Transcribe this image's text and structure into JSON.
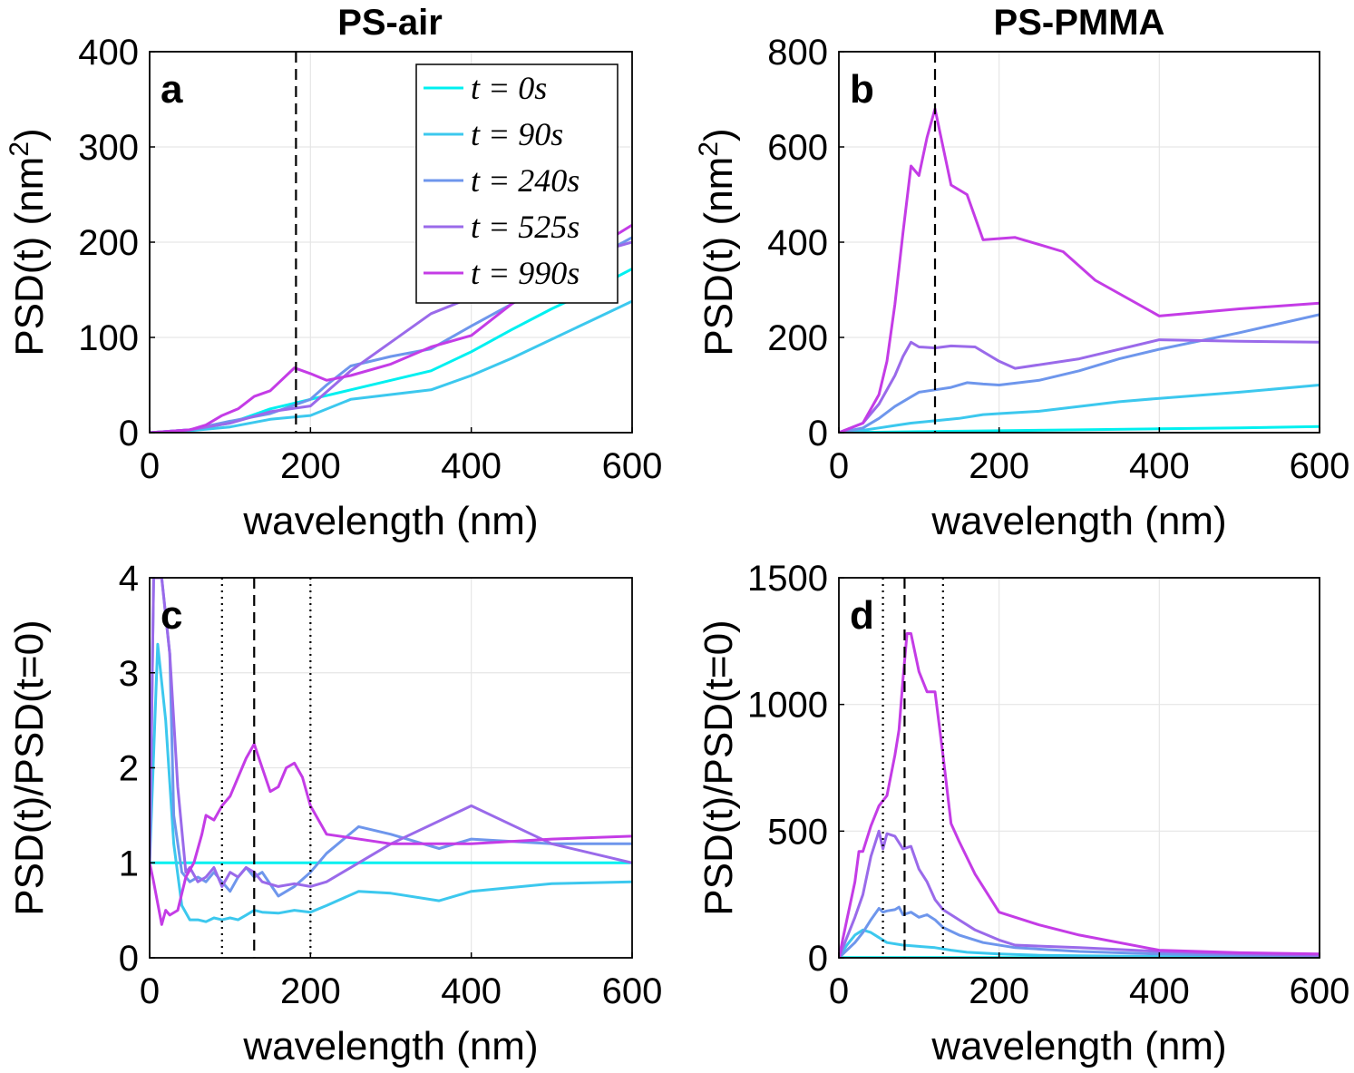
{
  "figure": {
    "column_titles": [
      "PS-air",
      "PS-PMMA"
    ]
  },
  "series_meta": [
    {
      "name": "t = 0s",
      "color": "#00F0F0"
    },
    {
      "name": "t = 90s",
      "color": "#3CC8EE"
    },
    {
      "name": "t = 240s",
      "color": "#6E96EC"
    },
    {
      "name": "t = 525s",
      "color": "#9A6AEA"
    },
    {
      "name": "t = 990s",
      "color": "#C43CE6"
    }
  ],
  "chart_data": [
    {
      "panel": "a",
      "type": "line",
      "xlabel": "wavelength (nm)",
      "ylabel": "PSD(t) (nm",
      "ylabel_sup": "2",
      "ylabel_tail": ")",
      "xlim": [
        0,
        600
      ],
      "ylim": [
        0,
        400
      ],
      "xticks": [
        0,
        200,
        400,
        600
      ],
      "yticks": [
        0,
        100,
        200,
        300,
        400
      ],
      "grid": true,
      "legend": "top-right",
      "vlines": [
        {
          "x": 182,
          "style": "dashed"
        }
      ],
      "series": [
        {
          "name": "t = 0s",
          "x": [
            0,
            50,
            100,
            150,
            200,
            250,
            300,
            350,
            400,
            450,
            500,
            550,
            600
          ],
          "y": [
            0,
            3,
            10,
            25,
            35,
            45,
            55,
            65,
            85,
            108,
            130,
            150,
            172
          ]
        },
        {
          "name": "t = 90s",
          "x": [
            0,
            50,
            100,
            150,
            200,
            250,
            300,
            350,
            400,
            450,
            500,
            550,
            600
          ],
          "y": [
            0,
            2,
            6,
            14,
            18,
            35,
            40,
            45,
            60,
            78,
            98,
            118,
            138
          ]
        },
        {
          "name": "t = 240s",
          "x": [
            0,
            50,
            100,
            150,
            200,
            220,
            250,
            300,
            350,
            400,
            450,
            500,
            550,
            600
          ],
          "y": [
            0,
            3,
            12,
            20,
            35,
            50,
            70,
            80,
            88,
            112,
            135,
            160,
            182,
            205
          ]
        },
        {
          "name": "t = 525s",
          "x": [
            0,
            50,
            100,
            150,
            200,
            250,
            300,
            350,
            400,
            450,
            500,
            550,
            600
          ],
          "y": [
            0,
            3,
            10,
            22,
            28,
            65,
            95,
            125,
            142,
            160,
            176,
            188,
            200
          ]
        },
        {
          "name": "t = 990s",
          "x": [
            0,
            50,
            70,
            90,
            110,
            130,
            150,
            180,
            200,
            220,
            250,
            300,
            350,
            400,
            450,
            500,
            550,
            600
          ],
          "y": [
            0,
            3,
            8,
            18,
            25,
            38,
            44,
            68,
            62,
            55,
            60,
            72,
            90,
            102,
            135,
            165,
            192,
            218
          ]
        }
      ]
    },
    {
      "panel": "b",
      "type": "line",
      "xlabel": "wavelength (nm)",
      "ylabel": "PSD(t) (nm",
      "ylabel_sup": "2",
      "ylabel_tail": ")",
      "xlim": [
        0,
        600
      ],
      "ylim": [
        0,
        800
      ],
      "xticks": [
        0,
        200,
        400,
        600
      ],
      "yticks": [
        0,
        200,
        400,
        600,
        800
      ],
      "grid": true,
      "legend": "none",
      "vlines": [
        {
          "x": 120,
          "style": "dashed"
        }
      ],
      "series": [
        {
          "name": "t = 0s",
          "x": [
            0,
            100,
            200,
            300,
            400,
            500,
            600
          ],
          "y": [
            0,
            2,
            4,
            6,
            8,
            10,
            13
          ]
        },
        {
          "name": "t = 90s",
          "x": [
            0,
            30,
            50,
            70,
            90,
            120,
            150,
            180,
            200,
            250,
            300,
            350,
            400,
            500,
            600
          ],
          "y": [
            0,
            5,
            10,
            15,
            20,
            25,
            30,
            38,
            40,
            45,
            55,
            65,
            72,
            85,
            100
          ]
        },
        {
          "name": "t = 240s",
          "x": [
            0,
            30,
            50,
            70,
            90,
            100,
            120,
            140,
            160,
            180,
            200,
            250,
            300,
            350,
            400,
            500,
            600
          ],
          "y": [
            0,
            10,
            30,
            55,
            75,
            85,
            90,
            95,
            105,
            102,
            100,
            110,
            130,
            155,
            175,
            210,
            248
          ]
        },
        {
          "name": "t = 525s",
          "x": [
            0,
            30,
            50,
            70,
            80,
            90,
            100,
            120,
            140,
            170,
            200,
            220,
            300,
            400,
            500,
            600
          ],
          "y": [
            0,
            20,
            60,
            120,
            160,
            190,
            180,
            178,
            182,
            180,
            150,
            135,
            155,
            195,
            192,
            190
          ]
        },
        {
          "name": "t = 990s",
          "x": [
            0,
            30,
            50,
            60,
            70,
            80,
            90,
            100,
            110,
            120,
            140,
            160,
            180,
            220,
            250,
            280,
            320,
            400,
            500,
            600
          ],
          "y": [
            0,
            20,
            80,
            150,
            270,
            420,
            560,
            540,
            620,
            680,
            520,
            500,
            405,
            410,
            395,
            380,
            320,
            245,
            260,
            272
          ]
        }
      ]
    },
    {
      "panel": "c",
      "type": "line",
      "xlabel": "wavelength (nm)",
      "ylabel": "PSD(t)/PSD(t=0)",
      "xlim": [
        0,
        600
      ],
      "ylim": [
        0,
        4
      ],
      "xticks": [
        0,
        200,
        400,
        600
      ],
      "yticks": [
        0,
        1,
        2,
        3,
        4
      ],
      "grid": true,
      "legend": "none",
      "vlines": [
        {
          "x": 90,
          "style": "dotted"
        },
        {
          "x": 130,
          "style": "dashed"
        },
        {
          "x": 200,
          "style": "dotted"
        }
      ],
      "series": [
        {
          "name": "t = 0s",
          "x": [
            0,
            600
          ],
          "y": [
            1,
            1
          ]
        },
        {
          "name": "t = 90s",
          "x": [
            0,
            10,
            20,
            30,
            40,
            50,
            60,
            70,
            80,
            90,
            100,
            110,
            120,
            130,
            140,
            160,
            180,
            200,
            220,
            260,
            300,
            360,
            400,
            500,
            600
          ],
          "y": [
            1.0,
            3.3,
            2.5,
            1.2,
            0.55,
            0.4,
            0.4,
            0.38,
            0.42,
            0.4,
            0.42,
            0.4,
            0.45,
            0.5,
            0.48,
            0.47,
            0.5,
            0.48,
            0.55,
            0.7,
            0.68,
            0.6,
            0.7,
            0.78,
            0.8
          ]
        },
        {
          "name": "t = 240s",
          "x": [
            0,
            5,
            15,
            25,
            30,
            40,
            50,
            60,
            70,
            80,
            90,
            100,
            110,
            120,
            130,
            140,
            160,
            180,
            200,
            220,
            260,
            300,
            360,
            400,
            500,
            600
          ],
          "y": [
            1.0,
            4.0,
            4.0,
            3.2,
            1.5,
            0.9,
            0.8,
            0.85,
            0.8,
            0.9,
            0.8,
            0.7,
            0.85,
            0.95,
            0.85,
            0.9,
            0.65,
            0.75,
            0.9,
            1.1,
            1.38,
            1.3,
            1.15,
            1.25,
            1.2,
            1.2
          ]
        },
        {
          "name": "t = 525s",
          "x": [
            0,
            5,
            15,
            25,
            35,
            45,
            50,
            60,
            70,
            80,
            90,
            100,
            110,
            120,
            130,
            140,
            160,
            180,
            200,
            220,
            300,
            400,
            500,
            600
          ],
          "y": [
            1.0,
            4.0,
            4.0,
            3.2,
            1.8,
            0.9,
            0.95,
            0.8,
            0.85,
            0.95,
            0.75,
            0.9,
            0.85,
            0.95,
            0.9,
            0.8,
            0.75,
            0.78,
            0.75,
            0.8,
            1.2,
            1.6,
            1.2,
            1.0
          ]
        },
        {
          "name": "t = 990s",
          "x": [
            0,
            5,
            15,
            20,
            25,
            35,
            45,
            55,
            65,
            70,
            80,
            90,
            100,
            110,
            120,
            130,
            140,
            150,
            160,
            170,
            180,
            190,
            200,
            220,
            300,
            400,
            500,
            600
          ],
          "y": [
            1.0,
            0.8,
            0.35,
            0.5,
            0.45,
            0.5,
            0.85,
            1.0,
            1.3,
            1.5,
            1.45,
            1.6,
            1.7,
            1.9,
            2.1,
            2.25,
            2.0,
            1.75,
            1.8,
            2.0,
            2.05,
            1.9,
            1.6,
            1.3,
            1.2,
            1.2,
            1.25,
            1.28
          ]
        }
      ]
    },
    {
      "panel": "d",
      "type": "line",
      "xlabel": "wavelength (nm)",
      "ylabel": "PSD(t)/PSD(t=0)",
      "xlim": [
        0,
        600
      ],
      "ylim": [
        0,
        1500
      ],
      "xticks": [
        0,
        200,
        400,
        600
      ],
      "yticks": [
        0,
        500,
        1000,
        1500
      ],
      "grid": true,
      "legend": "none",
      "vlines": [
        {
          "x": 55,
          "style": "dotted"
        },
        {
          "x": 82,
          "style": "dashed"
        },
        {
          "x": 130,
          "style": "dotted"
        }
      ],
      "series": [
        {
          "name": "t = 0s",
          "x": [
            0,
            600
          ],
          "y": [
            1,
            1
          ]
        },
        {
          "name": "t = 90s",
          "x": [
            0,
            10,
            20,
            30,
            40,
            50,
            60,
            80,
            100,
            120,
            140,
            160,
            200,
            250,
            300,
            400,
            500,
            600
          ],
          "y": [
            0,
            50,
            90,
            110,
            100,
            80,
            60,
            50,
            45,
            40,
            30,
            22,
            15,
            10,
            8,
            5,
            4,
            3
          ]
        },
        {
          "name": "t = 240s",
          "x": [
            0,
            20,
            30,
            40,
            50,
            55,
            60,
            70,
            75,
            80,
            90,
            100,
            110,
            120,
            130,
            150,
            180,
            220,
            300,
            400,
            500,
            600
          ],
          "y": [
            0,
            60,
            100,
            150,
            195,
            180,
            185,
            190,
            200,
            170,
            180,
            160,
            170,
            150,
            120,
            90,
            60,
            40,
            25,
            15,
            10,
            8
          ]
        },
        {
          "name": "t = 525s",
          "x": [
            0,
            10,
            20,
            30,
            40,
            50,
            55,
            60,
            70,
            80,
            90,
            100,
            110,
            120,
            130,
            150,
            170,
            200,
            220,
            300,
            400,
            500,
            600
          ],
          "y": [
            0,
            80,
            160,
            250,
            400,
            500,
            430,
            490,
            480,
            430,
            440,
            350,
            300,
            230,
            190,
            150,
            110,
            70,
            50,
            40,
            25,
            15,
            10
          ]
        },
        {
          "name": "t = 990s",
          "x": [
            0,
            10,
            20,
            25,
            30,
            40,
            50,
            60,
            70,
            75,
            80,
            85,
            90,
            100,
            110,
            120,
            130,
            140,
            150,
            170,
            200,
            250,
            300,
            400,
            500,
            600
          ],
          "y": [
            0,
            150,
            300,
            420,
            420,
            520,
            600,
            640,
            800,
            900,
            1100,
            1280,
            1280,
            1130,
            1050,
            1050,
            800,
            530,
            460,
            330,
            180,
            130,
            90,
            30,
            20,
            15
          ]
        }
      ]
    }
  ]
}
